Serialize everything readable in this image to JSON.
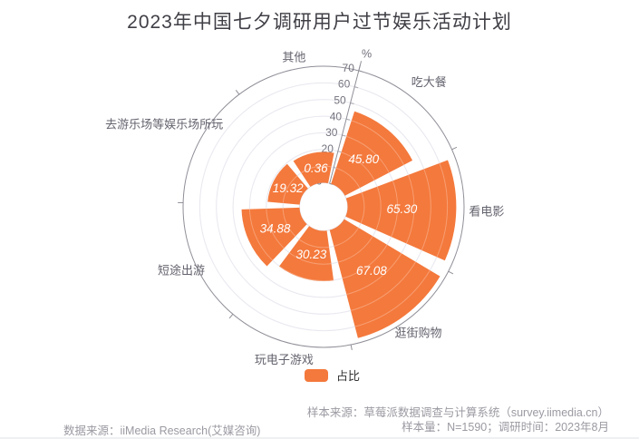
{
  "title": "2023年中国七夕调研用户过节娱乐活动计划",
  "chart_data": {
    "type": "bar",
    "subtype": "polar-rose",
    "title": "2023年中国七夕调研用户过节娱乐活动计划",
    "series_name": "占比",
    "categories": [
      "吃大餐",
      "看电影",
      "逛街购物",
      "玩电子游戏",
      "短途出游",
      "去游乐场等娱乐场所玩",
      "其他"
    ],
    "values": [
      45.8,
      65.3,
      67.08,
      30.23,
      34.88,
      19.32,
      0.36
    ],
    "value_labels": [
      "45.80",
      "65.30",
      "67.08",
      "30.23",
      "34.88",
      "19.32",
      "0.36"
    ],
    "radial_axis": {
      "min": 0,
      "max": 70,
      "ticks": [
        0,
        10,
        20,
        30,
        40,
        50,
        60,
        70
      ],
      "unit_label": "%"
    },
    "start_angle_deg": 75.5,
    "clockwise": true,
    "grid": "on",
    "legend_position": "bottom",
    "bar_color": "#F4793C"
  },
  "legend": {
    "label": "占比"
  },
  "footer": {
    "left": "数据来源：iiMedia Research(艾媒咨询)",
    "right_line1": "样本来源：草莓派数据调查与计算系统（survey.iimedia.cn）",
    "right_line2": "样本量：N=1590；调研时间：2023年8月"
  },
  "colors": {
    "bar": "#F4793C",
    "title_text": "#3F3F46",
    "axis_text": "#71717C",
    "category_text": "#63636E",
    "grid_ring": "#E0E0EA",
    "outer_ring": "#8F8F98",
    "value_label": "#FFFFFF",
    "footer_text": "#9A9AA2",
    "legend_text": "#333333"
  }
}
